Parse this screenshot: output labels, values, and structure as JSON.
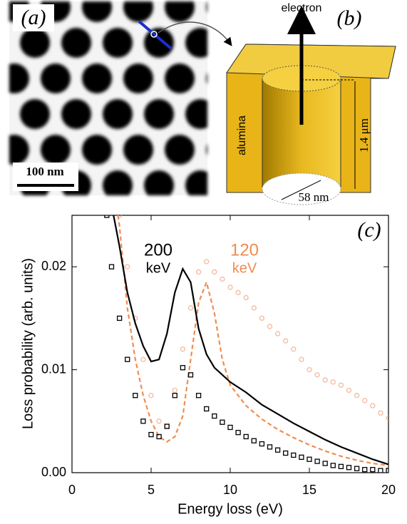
{
  "panels": {
    "a": {
      "label": "(a)",
      "scale_bar": "100 nm"
    },
    "b": {
      "label": "(b)",
      "electron": "electron",
      "material": "alumina",
      "height": "1.4 μm",
      "diameter": "58 nm"
    }
  },
  "chart_data": {
    "type": "line",
    "panel_label": "(c)",
    "x_label": "Energy loss (eV)",
    "y_label": "Loss probability (arb. units)",
    "xlim": [
      0,
      20
    ],
    "xticks": [
      0,
      5,
      10,
      15,
      20
    ],
    "ylim": [
      0,
      0.025
    ],
    "yticks": [
      {
        "value": 0,
        "label": "0.00"
      },
      {
        "value": 0.01,
        "label": "0.01"
      },
      {
        "value": 0.02,
        "label": "0.02"
      }
    ],
    "annotations": [
      {
        "text": "200",
        "color": "#000000"
      },
      {
        "text": "keV",
        "color": "#000000"
      },
      {
        "text": "120",
        "color": "#f08c50"
      },
      {
        "text": "keV",
        "color": "#f08c50"
      }
    ],
    "series": [
      {
        "style": "markers",
        "marker": "circle",
        "color": "#f5b89a",
        "x": [
          3,
          3.5,
          4,
          4.5,
          5,
          5.5,
          6,
          6.5,
          7,
          7.5,
          8,
          8.5,
          9,
          9.5,
          10,
          10.5,
          11,
          11.5,
          12,
          12.5,
          13,
          13.5,
          14,
          14.5,
          15,
          15.5,
          16,
          16.5,
          17,
          17.5,
          18,
          18.5,
          19,
          19.5,
          20
        ],
        "values": [
          0.025,
          0.02,
          0.015,
          0.011,
          0.0075,
          0.005,
          0.0045,
          0.008,
          0.012,
          0.016,
          0.0195,
          0.0205,
          0.0195,
          0.0188,
          0.018,
          0.0175,
          0.017,
          0.016,
          0.015,
          0.0142,
          0.0135,
          0.0128,
          0.012,
          0.011,
          0.01,
          0.0095,
          0.009,
          0.0088,
          0.0085,
          0.008,
          0.0075,
          0.007,
          0.0065,
          0.0058,
          0.0053
        ]
      },
      {
        "style": "line",
        "dash": true,
        "color": "#f08c50",
        "x": [
          2.9,
          3,
          3.5,
          4,
          4.5,
          5,
          5.5,
          6,
          6.5,
          7,
          7.5,
          8,
          8.5,
          9,
          9.5,
          10,
          11,
          12,
          13,
          14,
          15,
          16,
          17,
          18,
          19,
          20
        ],
        "values": [
          0.025,
          0.024,
          0.016,
          0.011,
          0.0075,
          0.005,
          0.0035,
          0.003,
          0.0035,
          0.0055,
          0.011,
          0.0165,
          0.0185,
          0.0155,
          0.011,
          0.0085,
          0.0065,
          0.0052,
          0.0042,
          0.0034,
          0.0027,
          0.0021,
          0.0016,
          0.0012,
          0.0009,
          0.0007
        ]
      },
      {
        "style": "markers",
        "marker": "square",
        "color": "#000000",
        "x": [
          2.2,
          2.5,
          3,
          3.5,
          4,
          4.5,
          5,
          5.5,
          6,
          6.5,
          7,
          7.5,
          8,
          8.5,
          9,
          9.5,
          10,
          10.5,
          11,
          11.5,
          12,
          12.5,
          13,
          13.5,
          14,
          14.5,
          15,
          15.5,
          16,
          16.5,
          17,
          17.5,
          18,
          18.5,
          19,
          19.5,
          20
        ],
        "values": [
          0.025,
          0.02,
          0.015,
          0.011,
          0.0075,
          0.005,
          0.0037,
          0.0035,
          0.0045,
          0.0075,
          0.0102,
          0.0095,
          0.0075,
          0.0062,
          0.0055,
          0.0049,
          0.0044,
          0.0039,
          0.0035,
          0.0031,
          0.0028,
          0.0025,
          0.0022,
          0.0019,
          0.0017,
          0.0015,
          0.0013,
          0.0011,
          0.0009,
          0.0007,
          0.0006,
          0.0005,
          0.0004,
          0.0003,
          0.0003,
          0.0002,
          0.0002
        ]
      },
      {
        "style": "line",
        "dash": false,
        "color": "#000000",
        "x": [
          2.5,
          3,
          3.5,
          4,
          4.5,
          5,
          5.5,
          6,
          6.5,
          7,
          7.5,
          8,
          8.5,
          9,
          10,
          11,
          12,
          13,
          14,
          15,
          16,
          17,
          18,
          19,
          20
        ],
        "values": [
          0.026,
          0.022,
          0.0175,
          0.0145,
          0.0123,
          0.0108,
          0.011,
          0.0135,
          0.0175,
          0.0198,
          0.0185,
          0.014,
          0.0115,
          0.0102,
          0.0088,
          0.0078,
          0.0066,
          0.0057,
          0.0048,
          0.004,
          0.0032,
          0.0025,
          0.0019,
          0.0013,
          0.0008
        ]
      }
    ]
  }
}
